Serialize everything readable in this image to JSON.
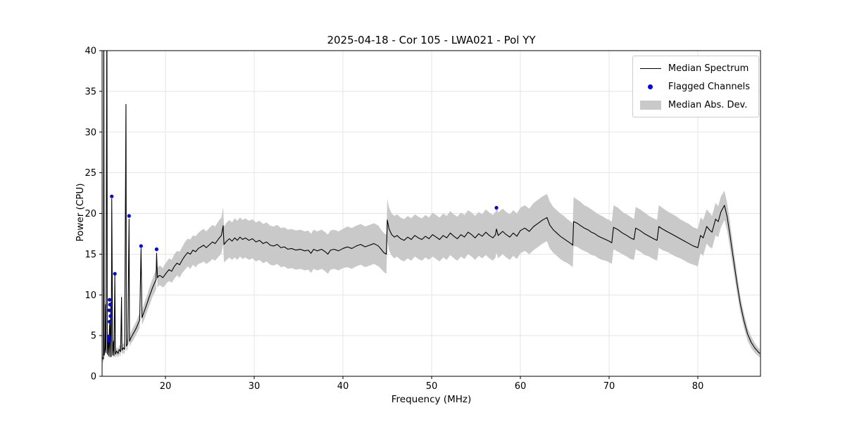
{
  "figure": {
    "title": "2025-04-18 - Cor 105 - LWA021 - Pol YY"
  },
  "chart_data": {
    "type": "line",
    "title": "2025-04-18 - Cor 105 - LWA021 - Pol YY",
    "xlabel": "Frequency (MHz)",
    "ylabel": "Power (CPU)",
    "xlim": [
      12.86,
      87.06
    ],
    "ylim": [
      0,
      40
    ],
    "xticks": [
      20,
      30,
      40,
      50,
      60,
      70,
      80
    ],
    "yticks": [
      0,
      5,
      10,
      15,
      20,
      25,
      30,
      35,
      40
    ],
    "grid": true,
    "legend": {
      "position": "upper right",
      "entries": [
        "Median Spectrum",
        "Flagged Channels",
        "Median Abs. Dev."
      ]
    },
    "colors": {
      "median_line": "#000000",
      "flagged": "#0000ff",
      "band": "#c9c9c9"
    },
    "median_spectrum": {
      "columns": [
        "frequency_mhz",
        "power_cpu",
        "median_abs_dev"
      ],
      "rows": [
        [
          12.9,
          2.3,
          0.5
        ],
        [
          13.0,
          2.1,
          0.5
        ],
        [
          13.05,
          46.0,
          0.8
        ],
        [
          13.1,
          2.6,
          0.5
        ],
        [
          13.2,
          3.4,
          0.6
        ],
        [
          13.25,
          8.8,
          0.8
        ],
        [
          13.3,
          2.9,
          0.5
        ],
        [
          13.4,
          46.0,
          0.8
        ],
        [
          13.45,
          2.7,
          0.5
        ],
        [
          13.55,
          4.9,
          0.6
        ],
        [
          13.6,
          2.5,
          0.5
        ],
        [
          13.7,
          6.4,
          0.7
        ],
        [
          13.75,
          2.4,
          0.5
        ],
        [
          13.85,
          9.1,
          0.8
        ],
        [
          13.9,
          2.4,
          0.5
        ],
        [
          13.95,
          21.8,
          1.0
        ],
        [
          14.05,
          2.6,
          0.5
        ],
        [
          14.15,
          4.3,
          0.6
        ],
        [
          14.2,
          2.5,
          0.5
        ],
        [
          14.3,
          12.4,
          0.9
        ],
        [
          14.35,
          2.7,
          0.5
        ],
        [
          14.5,
          3.1,
          0.5
        ],
        [
          14.65,
          2.8,
          0.5
        ],
        [
          14.8,
          3.3,
          0.6
        ],
        [
          14.95,
          3.0,
          0.6
        ],
        [
          15.05,
          9.7,
          0.9
        ],
        [
          15.1,
          3.2,
          0.6
        ],
        [
          15.25,
          3.5,
          0.6
        ],
        [
          15.4,
          3.3,
          0.6
        ],
        [
          15.55,
          33.4,
          1.2
        ],
        [
          15.6,
          3.7,
          0.6
        ],
        [
          15.75,
          4.0,
          0.7
        ],
        [
          15.9,
          19.3,
          1.0
        ],
        [
          15.95,
          4.3,
          0.7
        ],
        [
          16.1,
          4.7,
          0.7
        ],
        [
          16.3,
          5.1,
          0.8
        ],
        [
          16.5,
          5.5,
          0.8
        ],
        [
          16.7,
          5.9,
          0.8
        ],
        [
          16.9,
          6.4,
          0.9
        ],
        [
          17.1,
          6.9,
          0.9
        ],
        [
          17.25,
          15.7,
          1.4
        ],
        [
          17.35,
          7.2,
          0.9
        ],
        [
          17.55,
          7.8,
          1.0
        ],
        [
          17.75,
          8.4,
          1.0
        ],
        [
          17.95,
          9.0,
          1.0
        ],
        [
          18.15,
          9.7,
          1.1
        ],
        [
          18.35,
          10.3,
          1.1
        ],
        [
          18.55,
          10.9,
          1.1
        ],
        [
          18.75,
          11.4,
          1.2
        ],
        [
          18.95,
          11.9,
          1.2
        ],
        [
          19.0,
          15.1,
          1.3
        ],
        [
          19.1,
          12.1,
          1.2
        ],
        [
          19.3,
          12.4,
          1.2
        ],
        [
          19.5,
          12.3,
          1.2
        ],
        [
          19.7,
          12.1,
          1.2
        ],
        [
          19.9,
          12.4,
          1.3
        ],
        [
          20.1,
          12.7,
          1.3
        ],
        [
          20.4,
          13.1,
          1.4
        ],
        [
          20.7,
          12.9,
          1.4
        ],
        [
          21.0,
          13.5,
          1.5
        ],
        [
          21.3,
          13.9,
          1.5
        ],
        [
          21.6,
          13.7,
          1.6
        ],
        [
          21.9,
          14.3,
          1.6
        ],
        [
          22.2,
          14.8,
          1.7
        ],
        [
          22.5,
          15.2,
          1.7
        ],
        [
          22.8,
          15.0,
          1.8
        ],
        [
          23.1,
          15.5,
          1.8
        ],
        [
          23.4,
          15.3,
          1.9
        ],
        [
          23.7,
          15.7,
          1.9
        ],
        [
          24.0,
          15.9,
          2.0
        ],
        [
          24.3,
          16.1,
          2.0
        ],
        [
          24.6,
          15.8,
          2.0
        ],
        [
          25.0,
          16.2,
          2.1
        ],
        [
          25.3,
          16.5,
          2.1
        ],
        [
          25.6,
          16.3,
          2.1
        ],
        [
          26.0,
          16.9,
          2.2
        ],
        [
          26.3,
          17.3,
          2.2
        ],
        [
          26.5,
          18.5,
          2.3
        ],
        [
          26.6,
          16.2,
          2.2
        ],
        [
          26.9,
          16.6,
          2.3
        ],
        [
          27.2,
          16.9,
          2.3
        ],
        [
          27.5,
          16.6,
          2.3
        ],
        [
          27.8,
          17.0,
          2.4
        ],
        [
          28.1,
          16.7,
          2.4
        ],
        [
          28.4,
          17.1,
          2.4
        ],
        [
          28.7,
          16.8,
          2.4
        ],
        [
          29.0,
          17.0,
          2.4
        ],
        [
          29.4,
          16.7,
          2.4
        ],
        [
          29.8,
          16.9,
          2.4
        ],
        [
          30.2,
          16.5,
          2.4
        ],
        [
          30.6,
          16.7,
          2.4
        ],
        [
          31.0,
          16.3,
          2.4
        ],
        [
          31.4,
          16.5,
          2.4
        ],
        [
          31.8,
          16.1,
          2.4
        ],
        [
          32.2,
          16.0,
          2.4
        ],
        [
          32.6,
          16.2,
          2.4
        ],
        [
          33.0,
          15.8,
          2.4
        ],
        [
          33.4,
          15.9,
          2.4
        ],
        [
          33.8,
          15.6,
          2.4
        ],
        [
          34.2,
          15.7,
          2.4
        ],
        [
          34.7,
          15.5,
          2.4
        ],
        [
          35.2,
          15.6,
          2.4
        ],
        [
          35.7,
          15.4,
          2.4
        ],
        [
          36.1,
          15.5,
          2.4
        ],
        [
          36.4,
          15.1,
          2.4
        ],
        [
          36.7,
          15.6,
          2.4
        ],
        [
          37.1,
          15.4,
          2.4
        ],
        [
          37.6,
          15.6,
          2.4
        ],
        [
          38.0,
          15.3,
          2.4
        ],
        [
          38.3,
          15.0,
          2.4
        ],
        [
          38.6,
          15.5,
          2.4
        ],
        [
          39.0,
          15.6,
          2.4
        ],
        [
          39.5,
          15.4,
          2.4
        ],
        [
          40.0,
          15.7,
          2.4
        ],
        [
          40.5,
          15.9,
          2.5
        ],
        [
          41.0,
          15.7,
          2.5
        ],
        [
          41.5,
          16.0,
          2.5
        ],
        [
          42.0,
          16.2,
          2.5
        ],
        [
          42.5,
          15.9,
          2.5
        ],
        [
          43.0,
          16.1,
          2.5
        ],
        [
          43.5,
          16.3,
          2.5
        ],
        [
          44.0,
          16.0,
          2.5
        ],
        [
          44.3,
          15.6,
          2.4
        ],
        [
          44.6,
          15.2,
          2.4
        ],
        [
          44.9,
          15.0,
          2.4
        ],
        [
          45.0,
          19.2,
          2.6
        ],
        [
          45.2,
          18.1,
          2.6
        ],
        [
          45.5,
          17.4,
          2.6
        ],
        [
          45.8,
          17.1,
          2.6
        ],
        [
          46.1,
          17.3,
          2.6
        ],
        [
          46.5,
          16.9,
          2.6
        ],
        [
          46.9,
          16.7,
          2.6
        ],
        [
          47.3,
          17.1,
          2.6
        ],
        [
          47.7,
          16.8,
          2.6
        ],
        [
          48.1,
          17.3,
          2.6
        ],
        [
          48.5,
          17.0,
          2.6
        ],
        [
          48.9,
          16.8,
          2.6
        ],
        [
          49.3,
          17.2,
          2.6
        ],
        [
          49.7,
          16.9,
          2.6
        ],
        [
          50.1,
          17.4,
          2.7
        ],
        [
          50.5,
          17.1,
          2.7
        ],
        [
          50.9,
          16.8,
          2.7
        ],
        [
          51.3,
          17.3,
          2.7
        ],
        [
          51.7,
          17.0,
          2.7
        ],
        [
          52.1,
          17.6,
          2.7
        ],
        [
          52.5,
          17.2,
          2.7
        ],
        [
          52.9,
          16.9,
          2.7
        ],
        [
          53.3,
          17.4,
          2.7
        ],
        [
          53.7,
          17.1,
          2.7
        ],
        [
          54.1,
          17.7,
          2.7
        ],
        [
          54.5,
          17.4,
          2.7
        ],
        [
          54.9,
          17.0,
          2.7
        ],
        [
          55.3,
          17.5,
          2.7
        ],
        [
          55.7,
          17.2,
          2.7
        ],
        [
          56.1,
          17.7,
          2.8
        ],
        [
          56.5,
          17.3,
          2.8
        ],
        [
          56.9,
          17.0,
          2.8
        ],
        [
          57.2,
          17.4,
          2.8
        ],
        [
          57.3,
          18.1,
          2.9
        ],
        [
          57.5,
          17.3,
          2.8
        ],
        [
          58.0,
          17.8,
          2.8
        ],
        [
          58.4,
          17.4,
          2.8
        ],
        [
          58.8,
          17.1,
          2.8
        ],
        [
          59.2,
          17.6,
          2.8
        ],
        [
          59.6,
          17.2,
          2.8
        ],
        [
          60.0,
          17.9,
          2.8
        ],
        [
          60.5,
          18.2,
          2.8
        ],
        [
          61.0,
          17.8,
          2.8
        ],
        [
          61.5,
          18.4,
          2.9
        ],
        [
          62.0,
          18.8,
          2.9
        ],
        [
          62.5,
          19.2,
          2.9
        ],
        [
          63.0,
          19.5,
          2.9
        ],
        [
          63.3,
          18.6,
          2.9
        ],
        [
          63.7,
          18.0,
          2.8
        ],
        [
          64.1,
          17.6,
          2.8
        ],
        [
          64.5,
          17.2,
          2.8
        ],
        [
          64.9,
          16.9,
          2.8
        ],
        [
          65.3,
          16.6,
          2.7
        ],
        [
          65.7,
          16.3,
          2.7
        ],
        [
          65.9,
          16.1,
          2.7
        ],
        [
          66.0,
          19.0,
          3.0
        ],
        [
          66.4,
          18.8,
          2.9
        ],
        [
          66.8,
          18.5,
          2.9
        ],
        [
          67.2,
          18.2,
          2.8
        ],
        [
          67.6,
          18.0,
          2.8
        ],
        [
          68.0,
          17.7,
          2.8
        ],
        [
          68.4,
          17.5,
          2.7
        ],
        [
          68.8,
          17.2,
          2.7
        ],
        [
          69.2,
          17.0,
          2.7
        ],
        [
          69.6,
          16.8,
          2.6
        ],
        [
          70.0,
          16.6,
          2.6
        ],
        [
          70.3,
          16.4,
          2.6
        ],
        [
          70.5,
          18.3,
          2.7
        ],
        [
          71.0,
          18.0,
          2.7
        ],
        [
          71.5,
          17.6,
          2.6
        ],
        [
          72.0,
          17.3,
          2.6
        ],
        [
          72.4,
          17.0,
          2.6
        ],
        [
          72.8,
          16.8,
          2.5
        ],
        [
          73.0,
          18.2,
          2.6
        ],
        [
          73.5,
          17.9,
          2.6
        ],
        [
          74.0,
          17.5,
          2.6
        ],
        [
          74.5,
          17.2,
          2.5
        ],
        [
          75.0,
          16.9,
          2.5
        ],
        [
          75.4,
          16.7,
          2.5
        ],
        [
          75.6,
          18.4,
          2.6
        ],
        [
          76.0,
          18.1,
          2.6
        ],
        [
          76.5,
          17.8,
          2.5
        ],
        [
          77.0,
          17.5,
          2.5
        ],
        [
          77.5,
          17.2,
          2.5
        ],
        [
          78.0,
          16.9,
          2.4
        ],
        [
          78.5,
          16.6,
          2.4
        ],
        [
          79.0,
          16.3,
          2.4
        ],
        [
          79.5,
          16.0,
          2.3
        ],
        [
          80.0,
          15.8,
          2.3
        ],
        [
          80.3,
          17.3,
          2.2
        ],
        [
          80.6,
          17.0,
          2.2
        ],
        [
          81.0,
          18.4,
          2.1
        ],
        [
          81.3,
          18.0,
          2.1
        ],
        [
          81.6,
          17.7,
          2.0
        ],
        [
          82.0,
          19.3,
          2.0
        ],
        [
          82.3,
          19.0,
          1.9
        ],
        [
          82.6,
          20.2,
          1.9
        ],
        [
          83.0,
          21.0,
          1.8
        ],
        [
          83.3,
          19.6,
          1.7
        ],
        [
          83.6,
          17.5,
          1.6
        ],
        [
          84.0,
          14.5,
          1.4
        ],
        [
          84.4,
          11.5,
          1.2
        ],
        [
          84.8,
          8.8,
          1.0
        ],
        [
          85.2,
          6.8,
          0.9
        ],
        [
          85.6,
          5.2,
          0.8
        ],
        [
          86.0,
          4.2,
          0.7
        ],
        [
          86.4,
          3.5,
          0.6
        ],
        [
          86.8,
          3.0,
          0.5
        ],
        [
          87.0,
          2.8,
          0.5
        ]
      ]
    },
    "flagged_channels": {
      "columns": [
        "frequency_mhz",
        "power_cpu"
      ],
      "rows": [
        [
          13.95,
          22.1
        ],
        [
          14.3,
          12.6
        ],
        [
          13.7,
          9.4
        ],
        [
          13.75,
          8.8
        ],
        [
          13.65,
          8.1
        ],
        [
          13.8,
          7.4
        ],
        [
          13.7,
          6.7
        ],
        [
          13.6,
          4.9
        ],
        [
          13.65,
          4.4
        ],
        [
          15.9,
          19.7
        ],
        [
          17.25,
          16.0
        ],
        [
          19.0,
          15.6
        ],
        [
          57.3,
          20.7
        ]
      ]
    }
  }
}
